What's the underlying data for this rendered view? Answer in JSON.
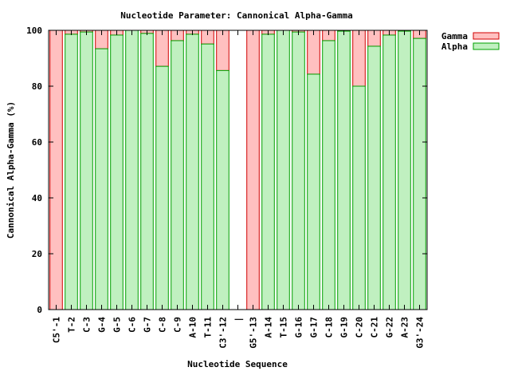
{
  "chart_data": {
    "type": "bar",
    "stacked": true,
    "title": "Nucleotide Parameter: Cannonical Alpha-Gamma",
    "xlabel": "Nucleotide Sequence",
    "ylabel": "Cannonical Alpha-Gamma (%)",
    "ylim": [
      0,
      100
    ],
    "yticks": [
      0,
      20,
      40,
      60,
      80,
      100
    ],
    "grid": false,
    "legend_position": "top-right, outside plot",
    "categories": [
      "C5'-1",
      "T-2",
      "C-3",
      "G-4",
      "G-5",
      "C-6",
      "G-7",
      "C-8",
      "C-9",
      "A-10",
      "T-11",
      "C3'-12",
      "|",
      "G5'-13",
      "A-14",
      "T-15",
      "G-16",
      "G-17",
      "C-18",
      "G-19",
      "C-20",
      "C-21",
      "G-22",
      "A-23",
      "G3'-24"
    ],
    "series": [
      {
        "name": "Alpha",
        "color": "#c0f0c0",
        "edge": "#00a000",
        "values": [
          0,
          98.6,
          99.4,
          93.4,
          98.3,
          100,
          98.9,
          87.1,
          96.3,
          98.6,
          95.1,
          85.6,
          null,
          0,
          98.6,
          100,
          99.4,
          84.3,
          96.3,
          99.7,
          80.0,
          94.3,
          98.3,
          99.7,
          97.1
        ]
      },
      {
        "name": "Gamma",
        "color": "#ffc0c0",
        "edge": "#d00000",
        "values": [
          100,
          1.4,
          0.6,
          6.6,
          1.7,
          0,
          1.1,
          12.9,
          3.7,
          1.4,
          4.9,
          14.4,
          null,
          100,
          1.4,
          0,
          0.6,
          15.7,
          3.7,
          0.3,
          20.0,
          5.7,
          1.7,
          0.3,
          2.9
        ]
      }
    ]
  }
}
